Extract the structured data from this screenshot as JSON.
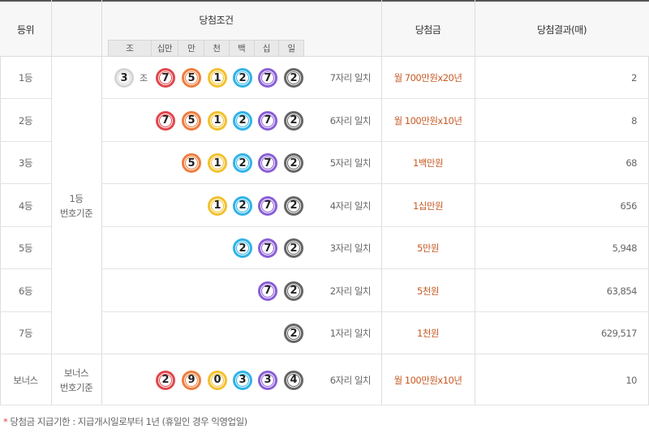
{
  "header": {
    "rank": "등위",
    "condition": "당첨조건",
    "prize": "당첨금",
    "result": "당첨결과(매)",
    "digit_labels": [
      "조",
      "십만",
      "만",
      "천",
      "백",
      "십",
      "일"
    ]
  },
  "colors": {
    "jo": "#d4d4d4",
    "d1": "#e0474c",
    "d2": "#ef7d3c",
    "d3": "#f2c12e",
    "d4": "#2fb3e8",
    "d5": "#8a5ed6",
    "d6": "#666666",
    "prize": "#c65a24"
  },
  "group_labels": {
    "main": "1등\n번호기준",
    "bonus": "보너스\n번호기준"
  },
  "jo_suffix": "조",
  "rows": [
    {
      "rank": "1등",
      "jo": "3",
      "digits": [
        "7",
        "5",
        "1",
        "2",
        "7",
        "2"
      ],
      "match": "7자리 일치",
      "prize": "월 700만원x20년",
      "count": "2"
    },
    {
      "rank": "2등",
      "digits": [
        "7",
        "5",
        "1",
        "2",
        "7",
        "2"
      ],
      "match": "6자리 일치",
      "prize": "월 100만원x10년",
      "count": "8"
    },
    {
      "rank": "3등",
      "digits": [
        "",
        "5",
        "1",
        "2",
        "7",
        "2"
      ],
      "match": "5자리 일치",
      "prize": "1백만원",
      "count": "68"
    },
    {
      "rank": "4등",
      "digits": [
        "",
        "",
        "1",
        "2",
        "7",
        "2"
      ],
      "match": "4자리 일치",
      "prize": "1십만원",
      "count": "656"
    },
    {
      "rank": "5등",
      "digits": [
        "",
        "",
        "",
        "2",
        "7",
        "2"
      ],
      "match": "3자리 일치",
      "prize": "5만원",
      "count": "5,948"
    },
    {
      "rank": "6등",
      "digits": [
        "",
        "",
        "",
        "",
        "7",
        "2"
      ],
      "match": "2자리 일치",
      "prize": "5천원",
      "count": "63,854"
    },
    {
      "rank": "7등",
      "digits": [
        "",
        "",
        "",
        "",
        "",
        "2"
      ],
      "match": "1자리 일치",
      "prize": "1천원",
      "count": "629,517"
    },
    {
      "rank": "보너스",
      "digits": [
        "2",
        "9",
        "0",
        "3",
        "3",
        "4"
      ],
      "match": "6자리 일치",
      "prize": "월 100만원x10년",
      "count": "10"
    }
  ],
  "footer": {
    "mark": "*",
    "text": "당첨금 지급기한 : 지급개시일로부터 1년 (휴일인 경우 익영업일)"
  }
}
